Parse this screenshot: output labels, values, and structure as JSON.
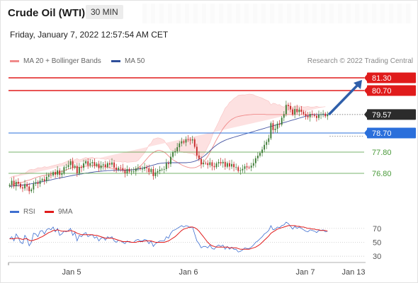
{
  "header": {
    "instrument": "Crude Oil (WTI)",
    "timeframe": "30 MIN",
    "datetime": "Friday, January 7, 2022 12:57:54 AM CET",
    "credit": "Research © 2022 Trading Central"
  },
  "legend": {
    "bb_label": "MA 20 + Bollinger Bands",
    "ma50_label": "MA 50",
    "rsi_label": "RSI",
    "rsi9_label": "9MA"
  },
  "colors": {
    "resistance": "#e01b1b",
    "pivot": "#2a6fdb",
    "support": "#4a9a3a",
    "current": "#2b2b2b",
    "arrow": "#2f5faa",
    "candle_up": "#3a7a32",
    "candle_down": "#c62828",
    "ma20": "#f08a8a",
    "bb_fill": "#fde1e1",
    "ma50": "#4656a3",
    "rsi": "#3f6fd0",
    "rsi_ma": "#e01b1b"
  },
  "chart_data": [
    {
      "type": "candlestick",
      "x_tick_labels": [
        "Jan 5",
        "Jan 6",
        "Jan 7",
        "Jan 13"
      ],
      "ylim": [
        75.6,
        81.7
      ],
      "levels": [
        {
          "label": "81.30",
          "value": 81.3,
          "kind": "resistance"
        },
        {
          "label": "80.70",
          "value": 80.7,
          "kind": "resistance"
        },
        {
          "label": "79.57",
          "value": 79.57,
          "kind": "current"
        },
        {
          "label": "78.70",
          "value": 78.7,
          "kind": "pivot"
        },
        {
          "label": "77.80",
          "value": 77.8,
          "kind": "support"
        },
        {
          "label": "76.80",
          "value": 76.8,
          "kind": "support"
        }
      ],
      "close": [
        76.26,
        76.45,
        76.19,
        76.4,
        76.31,
        76.14,
        76.09,
        76.29,
        76.18,
        75.96,
        76.04,
        76.31,
        76.37,
        76.3,
        76.46,
        76.52,
        76.44,
        76.64,
        76.72,
        76.7,
        76.86,
        76.74,
        76.94,
        76.73,
        76.79,
        77.09,
        77.1,
        77.19,
        77.37,
        77.07,
        77.15,
        76.81,
        77.09,
        77.06,
        77.27,
        77.37,
        77.18,
        77.28,
        77.33,
        77.16,
        77.25,
        77.04,
        77.17,
        77.22,
        77.1,
        77.28,
        77.21,
        77.31,
        77.07,
        76.97,
        77.06,
        77.05,
        76.95,
        76.81,
        77.0,
        76.88,
        76.89,
        76.89,
        77.03,
        77.06,
        77.01,
        77.01,
        77.09,
        77.04,
        76.86,
        77.0,
        76.67,
        76.84,
        76.9,
        76.97,
        76.98,
        77.0,
        77.28,
        77.24,
        77.58,
        77.79,
        77.84,
        78.03,
        78.21,
        78.31,
        78.25,
        78.4,
        78.39,
        78.35,
        78.4,
        78.05,
        77.64,
        77.48,
        77.23,
        77.29,
        77.28,
        77.19,
        77.32,
        77.14,
        77.09,
        77.27,
        77.33,
        77.27,
        77.34,
        77.11,
        77.28,
        77.12,
        77.24,
        77.09,
        77.09,
        76.91,
        76.94,
        77.01,
        77.13,
        77.08,
        77.07,
        77.16,
        77.28,
        77.51,
        77.63,
        77.76,
        77.92,
        78.14,
        78.28,
        78.45,
        79.16,
        78.84,
        78.9,
        79.14,
        79.09,
        79.42,
        79.59,
        80.02,
        79.97,
        79.81,
        79.57,
        79.83,
        79.69,
        79.8,
        79.7,
        79.6,
        79.5,
        79.44,
        79.6,
        79.56,
        79.51,
        79.41,
        79.56,
        79.58,
        79.61,
        79.49,
        79.57
      ],
      "ma20": [
        76.2,
        76.25,
        76.3,
        76.33,
        76.35,
        76.36,
        76.38,
        76.42,
        76.46,
        76.48,
        76.52,
        76.56,
        76.6,
        76.63,
        76.66,
        76.68,
        76.7,
        76.72,
        76.75,
        76.77,
        76.8,
        76.82,
        76.84,
        76.86,
        76.88,
        76.92,
        76.96,
        77.0,
        77.04,
        77.06,
        77.08,
        77.08,
        77.08,
        77.1,
        77.12,
        77.14,
        77.15,
        77.16,
        77.17,
        77.16,
        77.15,
        77.14,
        77.12,
        77.11,
        77.1,
        77.08,
        77.06,
        77.04,
        77.02,
        77.0,
        76.99,
        76.98,
        76.97,
        76.96,
        76.96,
        76.96,
        76.97,
        76.98,
        77.0,
        77.06,
        77.14,
        77.24,
        77.36,
        77.48,
        77.6,
        77.7,
        77.78,
        77.84,
        77.88,
        77.88,
        77.85,
        77.8,
        77.72,
        77.62,
        77.52,
        77.44,
        77.38,
        77.32,
        77.26,
        77.2,
        77.15,
        77.11,
        77.08,
        77.06,
        77.06,
        77.07,
        77.1,
        77.15,
        77.22,
        77.32,
        77.45,
        77.6,
        77.78,
        77.98,
        78.18,
        78.38,
        78.56,
        78.74,
        78.9,
        79.04,
        79.16,
        79.26,
        79.34,
        79.4,
        79.45,
        79.48,
        79.5,
        79.52,
        79.54,
        79.55,
        79.56,
        79.57,
        79.58,
        79.58,
        79.58,
        79.58,
        79.58,
        79.58,
        79.57,
        79.57,
        79.57,
        79.57,
        79.57,
        79.57,
        79.57,
        79.57,
        79.57,
        79.57,
        79.57,
        79.57,
        79.57,
        79.57,
        79.57,
        79.57,
        79.57,
        79.57,
        79.57,
        79.57,
        79.57,
        79.57,
        79.57,
        79.57,
        79.57,
        79.57,
        79.57,
        79.57
      ],
      "ma50": [
        76.18,
        76.2,
        76.21,
        76.22,
        76.23,
        76.24,
        76.25,
        76.26,
        76.27,
        76.29,
        76.31,
        76.33,
        76.35,
        76.37,
        76.39,
        76.41,
        76.43,
        76.45,
        76.47,
        76.49,
        76.52,
        76.54,
        76.56,
        76.58,
        76.6,
        76.62,
        76.64,
        76.66,
        76.68,
        76.7,
        76.72,
        76.74,
        76.76,
        76.77,
        76.79,
        76.81,
        76.82,
        76.84,
        76.85,
        76.87,
        76.88,
        76.89,
        76.9,
        76.91,
        76.92,
        76.93,
        76.93,
        76.94,
        76.94,
        76.94,
        76.94,
        76.94,
        76.94,
        76.95,
        76.95,
        76.96,
        76.96,
        76.97,
        76.98,
        77.0,
        77.02,
        77.04,
        77.07,
        77.1,
        77.13,
        77.16,
        77.19,
        77.22,
        77.25,
        77.27,
        77.28,
        77.29,
        77.3,
        77.3,
        77.3,
        77.3,
        77.3,
        77.3,
        77.3,
        77.3,
        77.3,
        77.3,
        77.31,
        77.32,
        77.34,
        77.37,
        77.41,
        77.46,
        77.52,
        77.59,
        77.67,
        77.76,
        77.86,
        77.96,
        78.05,
        78.13,
        78.2,
        78.26,
        78.31,
        78.36,
        78.4,
        78.44,
        78.47,
        78.5,
        78.53,
        78.56,
        78.59,
        78.62,
        78.65,
        78.68,
        78.71,
        78.74,
        78.77,
        78.8,
        78.83,
        78.86,
        78.89,
        78.92,
        78.95,
        78.98,
        79.01,
        79.04,
        79.07,
        79.1,
        79.13,
        79.16,
        79.19,
        79.22,
        79.25,
        79.28,
        79.31,
        79.34,
        79.37,
        79.4,
        79.43,
        79.46,
        79.49,
        79.52,
        79.55,
        79.57,
        79.57,
        79.57,
        79.57,
        79.57,
        79.57,
        79.57,
        79.57,
        79.57
      ]
    },
    {
      "type": "line",
      "title": "RSI",
      "ylim": [
        25,
        80
      ],
      "y_tick_labels": [
        "70",
        "50",
        "30"
      ],
      "series": [
        {
          "name": "RSI",
          "values": [
            55,
            58,
            52,
            62,
            57,
            50,
            48,
            60,
            55,
            45,
            50,
            63,
            62,
            58,
            66,
            67,
            62,
            68,
            70,
            68,
            72,
            65,
            70,
            60,
            62,
            66,
            65,
            67,
            70,
            60,
            64,
            52,
            60,
            58,
            62,
            64,
            58,
            60,
            61,
            56,
            58,
            52,
            56,
            57,
            53,
            58,
            56,
            58,
            52,
            50,
            53,
            52,
            50,
            48,
            52,
            50,
            50,
            50,
            53,
            54,
            52,
            52,
            54,
            53,
            48,
            52,
            44,
            48,
            50,
            52,
            52,
            52,
            58,
            56,
            63,
            67,
            68,
            70,
            72,
            74,
            72,
            74,
            73,
            71,
            72,
            62,
            52,
            48,
            42,
            44,
            44,
            42,
            46,
            41,
            40,
            44,
            46,
            44,
            46,
            40,
            44,
            40,
            43,
            40,
            40,
            36,
            37,
            39,
            42,
            41,
            41,
            43,
            46,
            50,
            52,
            55,
            58,
            62,
            64,
            67,
            74,
            68,
            69,
            72,
            71,
            74,
            75,
            79,
            77,
            73,
            69,
            73,
            70,
            72,
            70,
            68,
            66,
            65,
            68,
            67,
            66,
            64,
            67,
            67,
            68,
            65,
            66
          ]
        },
        {
          "name": "9MA",
          "values": [
            55,
            55,
            55,
            56,
            56,
            55,
            54,
            55,
            55,
            53,
            52,
            53,
            54,
            55,
            57,
            58,
            60,
            62,
            64,
            65,
            67,
            67,
            68,
            67,
            66,
            66,
            66,
            66,
            67,
            66,
            65,
            63,
            62,
            61,
            61,
            61,
            61,
            61,
            61,
            60,
            60,
            59,
            58,
            57,
            56,
            56,
            56,
            56,
            55,
            54,
            53,
            52,
            51,
            51,
            51,
            51,
            50,
            50,
            50,
            51,
            51,
            51,
            52,
            52,
            52,
            52,
            51,
            50,
            50,
            50,
            50,
            50,
            51,
            52,
            54,
            56,
            58,
            61,
            64,
            67,
            69,
            70,
            71,
            72,
            72,
            71,
            69,
            66,
            62,
            58,
            54,
            50,
            47,
            45,
            44,
            43,
            43,
            43,
            43,
            43,
            43,
            42,
            42,
            42,
            42,
            41,
            40,
            40,
            40,
            40,
            40,
            41,
            42,
            43,
            45,
            47,
            50,
            53,
            56,
            59,
            63,
            65,
            67,
            69,
            70,
            71,
            72,
            73,
            74,
            74,
            74,
            74,
            73,
            73,
            72,
            72,
            71,
            70,
            70,
            69,
            69,
            68,
            68,
            67,
            67,
            67,
            66
          ]
        }
      ]
    }
  ]
}
